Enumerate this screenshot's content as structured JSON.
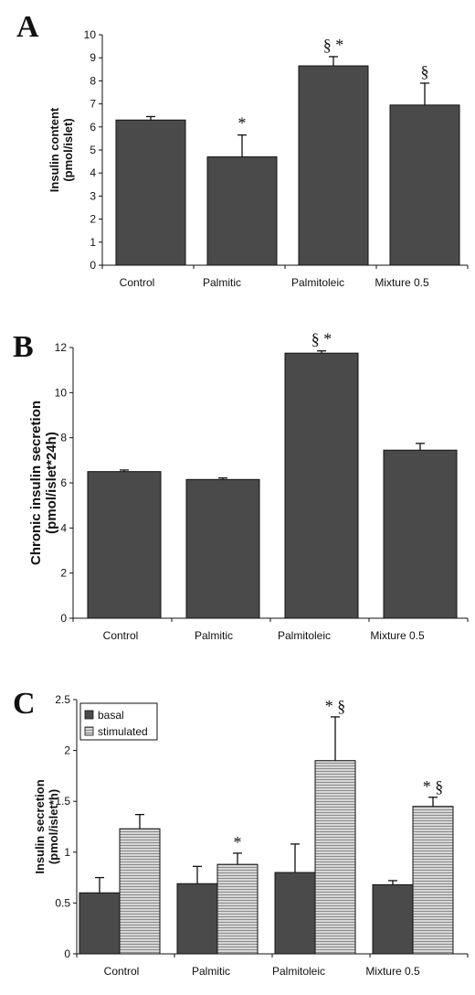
{
  "colors": {
    "bar_dark": "#4a4a4a",
    "bar_light": "#d6d6d6",
    "stripe": "#8c8c8c",
    "axis": "#111111"
  },
  "chart_data": [
    {
      "panel": "A",
      "type": "bar",
      "categories": [
        "Control",
        "Palmitic",
        "Palmitoleic",
        "Mixture 0.5"
      ],
      "values": [
        6.3,
        4.7,
        8.65,
        6.95
      ],
      "errors": [
        0.15,
        0.95,
        0.4,
        0.95
      ],
      "annotations": [
        "",
        "*",
        "§ *",
        "§"
      ],
      "ylabel": "Insulin content",
      "ylabel_units": "(pmol/islet)",
      "ylim": [
        0,
        10
      ],
      "yticks": [
        "0",
        "1",
        "2",
        "3",
        "4",
        "5",
        "6",
        "7",
        "8",
        "9",
        "10"
      ]
    },
    {
      "panel": "B",
      "type": "bar",
      "categories": [
        "Control",
        "Palmitic",
        "Palmitoleic",
        "Mixture 0.5"
      ],
      "values": [
        6.5,
        6.15,
        11.75,
        7.45
      ],
      "errors": [
        0.07,
        0.07,
        0.1,
        0.3
      ],
      "annotations": [
        "",
        "",
        "§ *",
        ""
      ],
      "ylabel": "Chronic insulin secretion",
      "ylabel_units": "(pmol/islet*24h)",
      "ylim": [
        0,
        12
      ],
      "yticks": [
        "0",
        "2",
        "4",
        "6",
        "8",
        "10",
        "12"
      ]
    },
    {
      "panel": "C",
      "type": "bar",
      "categories": [
        "Control",
        "Palmitic",
        "Palmitoleic",
        "Mixture 0.5"
      ],
      "series": [
        {
          "name": "basal",
          "values": [
            0.6,
            0.69,
            0.8,
            0.68
          ],
          "errors": [
            0.15,
            0.17,
            0.28,
            0.04
          ],
          "annotations": [
            "",
            "",
            "",
            ""
          ]
        },
        {
          "name": "stimulated",
          "values": [
            1.23,
            0.88,
            1.9,
            1.45
          ],
          "errors": [
            0.14,
            0.11,
            0.43,
            0.09
          ],
          "annotations": [
            "",
            "*",
            "* §",
            "* §"
          ]
        }
      ],
      "ylabel": "Insulin secretion",
      "ylabel_units": "(pmol/islet*h)",
      "ylim": [
        0,
        2.5
      ],
      "yticks": [
        "0",
        "0.5",
        "1",
        "1.5",
        "2",
        "2.5"
      ],
      "legend_position": "top-left"
    }
  ]
}
